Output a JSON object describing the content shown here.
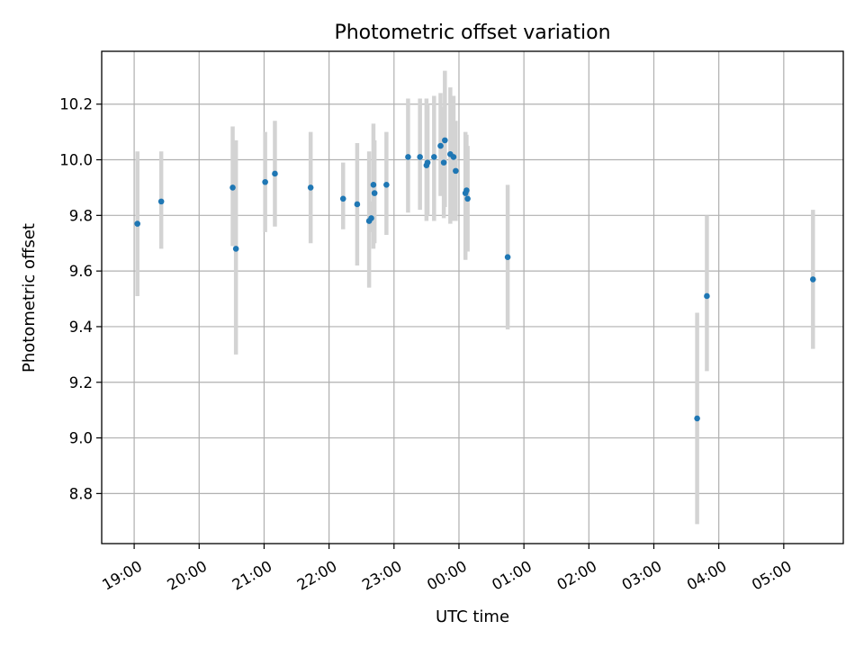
{
  "chart_data": {
    "type": "scatter",
    "title": "Photometric offset variation",
    "xlabel": "UTC time",
    "ylabel": "Photometric offset",
    "grid": true,
    "x_axis_type": "time",
    "xlim": [
      "18:30",
      "05:55"
    ],
    "ylim": [
      8.62,
      10.39
    ],
    "x_ticks": [
      "19:00",
      "20:00",
      "21:00",
      "22:00",
      "23:00",
      "00:00",
      "01:00",
      "02:00",
      "03:00",
      "04:00",
      "05:00"
    ],
    "y_ticks": [
      8.8,
      9.0,
      9.2,
      9.4,
      9.6,
      9.8,
      10.0,
      10.2
    ],
    "colors": {
      "points": "#1f77b4",
      "error_bars": "#d3d3d3",
      "grid": "#b0b0b0"
    },
    "points": [
      {
        "x": "19:03",
        "y": 9.77,
        "low": 9.51,
        "high": 10.03
      },
      {
        "x": "19:25",
        "y": 9.85,
        "low": 9.68,
        "high": 10.03
      },
      {
        "x": "20:31",
        "y": 9.9,
        "low": 9.69,
        "high": 10.12
      },
      {
        "x": "20:34",
        "y": 9.68,
        "low": 9.3,
        "high": 10.07
      },
      {
        "x": "21:01",
        "y": 9.92,
        "low": 9.74,
        "high": 10.1
      },
      {
        "x": "21:10",
        "y": 9.95,
        "low": 9.76,
        "high": 10.14
      },
      {
        "x": "21:43",
        "y": 9.9,
        "low": 9.7,
        "high": 10.1
      },
      {
        "x": "22:13",
        "y": 9.86,
        "low": 9.75,
        "high": 9.99
      },
      {
        "x": "22:26",
        "y": 9.84,
        "low": 9.62,
        "high": 10.06
      },
      {
        "x": "22:37",
        "y": 9.78,
        "low": 9.54,
        "high": 10.03
      },
      {
        "x": "22:39",
        "y": 9.79,
        "low": 9.74,
        "high": 9.85
      },
      {
        "x": "22:41",
        "y": 9.91,
        "low": 9.68,
        "high": 10.13
      },
      {
        "x": "22:42",
        "y": 9.88,
        "low": 9.7,
        "high": 10.07
      },
      {
        "x": "22:53",
        "y": 9.91,
        "low": 9.73,
        "high": 10.1
      },
      {
        "x": "23:13",
        "y": 10.01,
        "low": 9.81,
        "high": 10.22
      },
      {
        "x": "23:24",
        "y": 10.01,
        "low": 9.82,
        "high": 10.22
      },
      {
        "x": "23:30",
        "y": 9.98,
        "low": 9.78,
        "high": 10.22
      },
      {
        "x": "23:31",
        "y": 9.99,
        "low": 9.8,
        "high": 10.2
      },
      {
        "x": "23:37",
        "y": 10.01,
        "low": 9.78,
        "high": 10.23
      },
      {
        "x": "23:43",
        "y": 10.05,
        "low": 9.87,
        "high": 10.24
      },
      {
        "x": "23:46",
        "y": 9.99,
        "low": 9.79,
        "high": 10.19
      },
      {
        "x": "23:47",
        "y": 10.07,
        "low": 9.83,
        "high": 10.32
      },
      {
        "x": "23:52",
        "y": 10.02,
        "low": 9.77,
        "high": 10.26
      },
      {
        "x": "23:55",
        "y": 10.01,
        "low": 9.78,
        "high": 10.23
      },
      {
        "x": "23:57",
        "y": 9.96,
        "low": 9.78,
        "high": 10.14
      },
      {
        "x": "00:06",
        "y": 9.88,
        "low": 9.64,
        "high": 10.1
      },
      {
        "x": "00:07",
        "y": 9.89,
        "low": 9.7,
        "high": 10.09
      },
      {
        "x": "00:08",
        "y": 9.86,
        "low": 9.67,
        "high": 10.05
      },
      {
        "x": "00:45",
        "y": 9.65,
        "low": 9.39,
        "high": 9.91
      },
      {
        "x": "03:40",
        "y": 9.07,
        "low": 8.69,
        "high": 9.45
      },
      {
        "x": "03:49",
        "y": 9.51,
        "low": 9.24,
        "high": 9.8
      },
      {
        "x": "05:27",
        "y": 9.57,
        "low": 9.32,
        "high": 9.82
      }
    ]
  }
}
